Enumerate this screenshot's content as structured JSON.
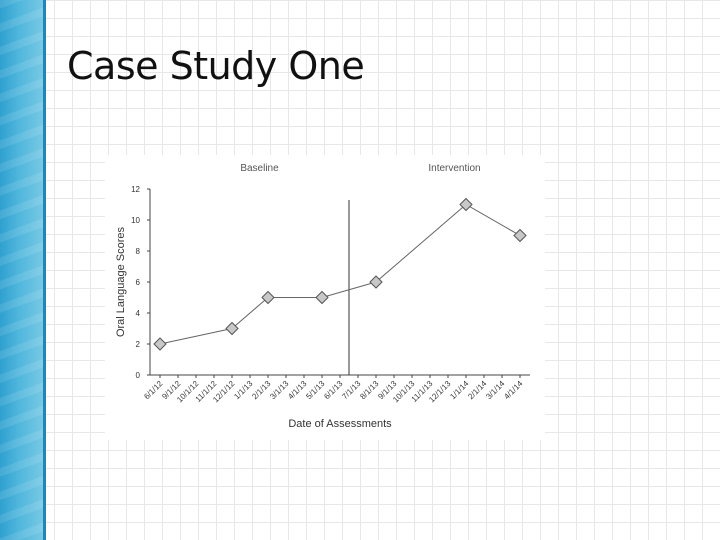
{
  "slide": {
    "title": "Case Study One"
  },
  "chart_data": {
    "type": "line",
    "title": "",
    "xlabel": "Date of Assessments",
    "ylabel": "Oral Language Scores",
    "ylim": [
      0,
      12
    ],
    "yticks": [
      0,
      2,
      4,
      6,
      8,
      10,
      12
    ],
    "grid": false,
    "legend": "none",
    "categories": [
      "6/1/12",
      "9/1/12",
      "10/1/12",
      "11/1/12",
      "12/1/12",
      "1/1/13",
      "2/1/13",
      "3/1/13",
      "4/1/13",
      "5/1/13",
      "6/1/13",
      "7/1/13",
      "8/1/13",
      "9/1/13",
      "10/1/13",
      "11/1/13",
      "12/1/13",
      "1/1/14",
      "2/1/14",
      "3/1/14",
      "4/1/14"
    ],
    "series": [
      {
        "points": [
          {
            "x": "6/1/12",
            "y": 2
          },
          {
            "x": "12/1/12",
            "y": 3
          },
          {
            "x": "2/1/13",
            "y": 5
          },
          {
            "x": "5/1/13",
            "y": 5
          },
          {
            "x": "8/1/13",
            "y": 6
          },
          {
            "x": "1/1/14",
            "y": 11
          },
          {
            "x": "4/1/14",
            "y": 9
          }
        ]
      }
    ],
    "phase_change_after": "6/1/13",
    "phases": [
      {
        "label": "Baseline"
      },
      {
        "label": "Intervention"
      }
    ],
    "marker": "diamond",
    "marker_color": "#c8c8c8",
    "line_color": "#666666"
  }
}
